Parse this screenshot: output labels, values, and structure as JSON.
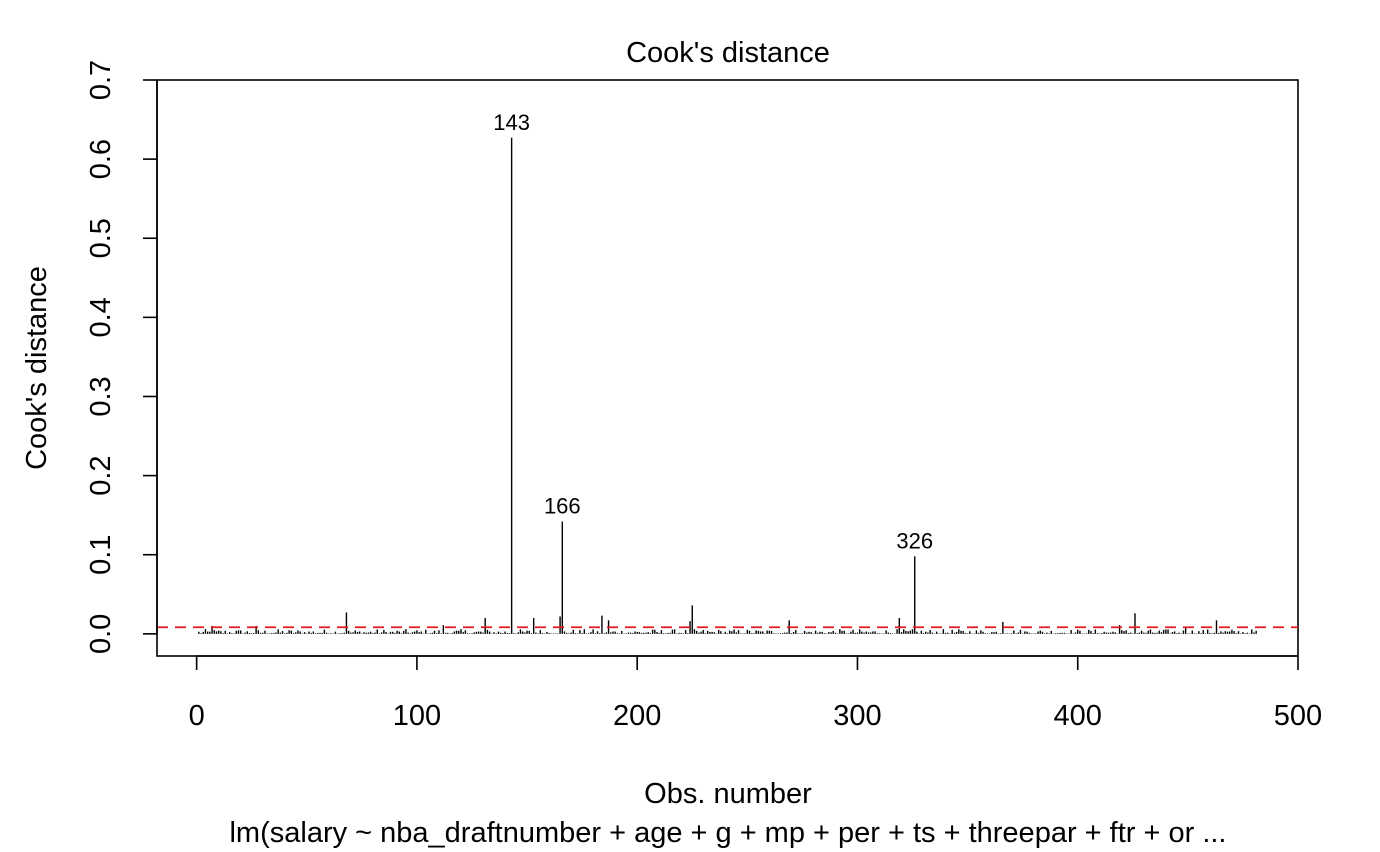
{
  "chart_data": {
    "type": "bar",
    "title": "Cook's distance",
    "xlabel": "Obs. number",
    "ylabel": "Cook's distance",
    "subtitle": "lm(salary ~ nba_draftnumber + age + g + mp + per + ts + threepar + ftr + or ...",
    "xlim": [
      -18,
      500
    ],
    "ylim": [
      -0.028,
      0.7
    ],
    "xticks": [
      0,
      100,
      200,
      300,
      400,
      500
    ],
    "yticks": [
      0.0,
      0.1,
      0.2,
      0.3,
      0.4,
      0.5,
      0.6,
      0.7
    ],
    "xtick_labels": [
      "0",
      "100",
      "200",
      "300",
      "400",
      "500"
    ],
    "ytick_labels": [
      "0.0",
      "0.1",
      "0.2",
      "0.3",
      "0.4",
      "0.5",
      "0.6",
      "0.7"
    ],
    "n_obs": 481,
    "threshold": {
      "value": 0.0083,
      "color": "#e41a1c",
      "style": "dashed"
    },
    "highlighted_points": [
      {
        "x": 143,
        "y": 0.627,
        "label": "143"
      },
      {
        "x": 166,
        "y": 0.142,
        "label": "166"
      },
      {
        "x": 326,
        "y": 0.098,
        "label": "326"
      }
    ],
    "notable_points": [
      {
        "x": 7,
        "y": 0.01
      },
      {
        "x": 27,
        "y": 0.01
      },
      {
        "x": 68,
        "y": 0.027
      },
      {
        "x": 112,
        "y": 0.011
      },
      {
        "x": 131,
        "y": 0.02
      },
      {
        "x": 153,
        "y": 0.02
      },
      {
        "x": 165,
        "y": 0.022
      },
      {
        "x": 184,
        "y": 0.023
      },
      {
        "x": 187,
        "y": 0.017
      },
      {
        "x": 224,
        "y": 0.016
      },
      {
        "x": 225,
        "y": 0.036
      },
      {
        "x": 269,
        "y": 0.017
      },
      {
        "x": 319,
        "y": 0.02
      },
      {
        "x": 366,
        "y": 0.015
      },
      {
        "x": 419,
        "y": 0.011
      },
      {
        "x": 426,
        "y": 0.026
      },
      {
        "x": 449,
        "y": 0.009
      },
      {
        "x": 463,
        "y": 0.017
      }
    ],
    "background_level": {
      "min": 0.0005,
      "max": 0.006
    },
    "grid": false,
    "legend": "none"
  }
}
